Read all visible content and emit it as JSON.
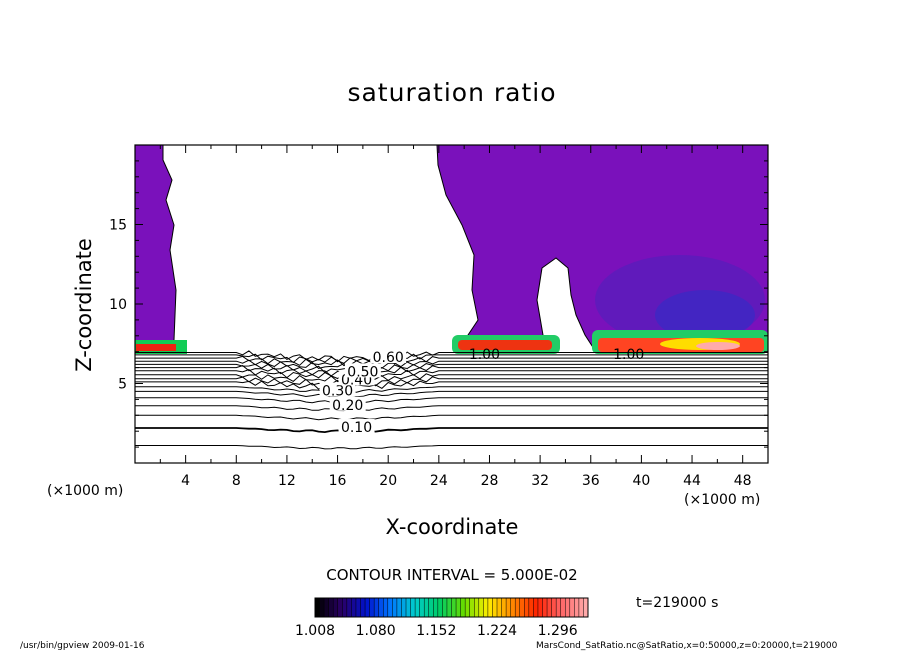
{
  "chart_data": {
    "type": "heatmap",
    "title": "saturation ratio",
    "xlabel": "X-coordinate",
    "ylabel": "Z-coordinate",
    "x_unit": "(×1000 m)",
    "xlim": [
      0,
      50
    ],
    "ylim": [
      0,
      20
    ],
    "x_ticks": [
      4,
      8,
      12,
      16,
      20,
      24,
      28,
      32,
      36,
      40,
      44,
      48
    ],
    "y_ticks": [
      5,
      10,
      15
    ],
    "contour_labels": [
      {
        "text": "0.10",
        "x": 17.5,
        "y": 2.2
      },
      {
        "text": "0.20",
        "x": 16.8,
        "y": 3.6
      },
      {
        "text": "0.30",
        "x": 16.0,
        "y": 4.5
      },
      {
        "text": "0.40",
        "x": 17.5,
        "y": 5.2
      },
      {
        "text": "0.50",
        "x": 18.0,
        "y": 5.7
      },
      {
        "text": "0.60",
        "x": 20.0,
        "y": 6.6
      },
      {
        "text": "1.00",
        "x": 27.6,
        "y": 6.8
      },
      {
        "text": "1.00",
        "x": 39.0,
        "y": 6.8
      }
    ],
    "colorbar": {
      "min": 1.008,
      "max": 1.332,
      "tick_labels": [
        "1.008",
        "1.080",
        "1.152",
        "1.224",
        "1.296"
      ],
      "colors": [
        "#000000",
        "#2a0066",
        "#0011cc",
        "#0077ff",
        "#00cccc",
        "#00cc66",
        "#66dd00",
        "#ffee00",
        "#ff8800",
        "#ff2200",
        "#ff6666",
        "#ffaaaa"
      ]
    },
    "contour_interval": "CONTOUR INTERVAL = 5.000E-02",
    "time": "t=219000 s"
  },
  "footer": {
    "left": "/usr/bin/gpview  2009-01-16",
    "right": "MarsCond_SatRatio.nc@SatRatio,x=0:50000,z=0:20000,t=219000"
  }
}
